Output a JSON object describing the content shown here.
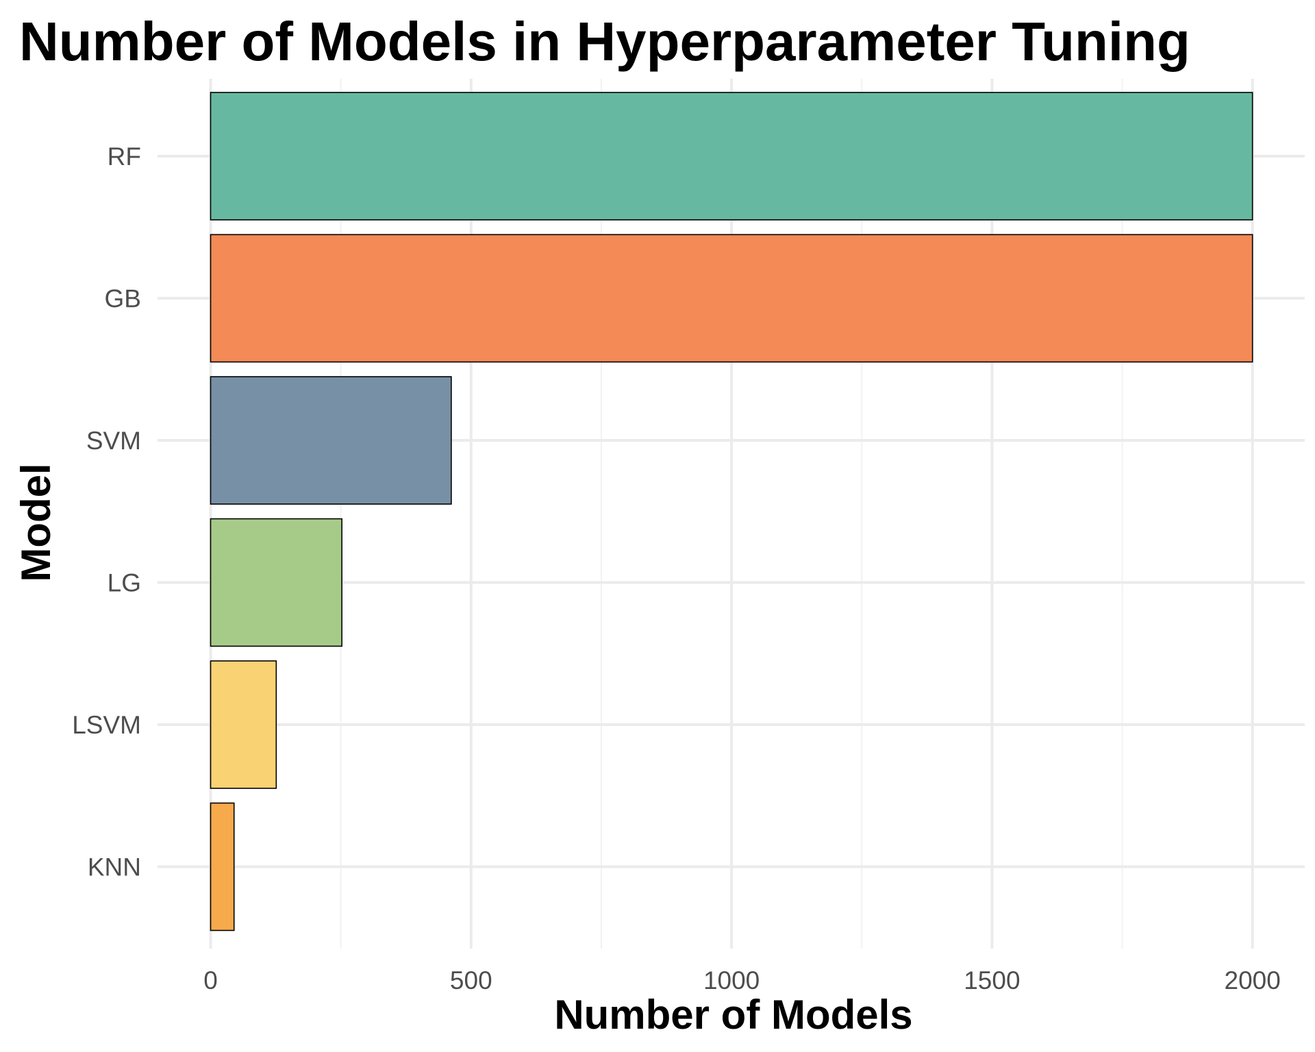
{
  "chart_data": {
    "type": "bar",
    "orientation": "horizontal",
    "title": "Number of Models in Hyperparameter Tuning",
    "xlabel": "Number of Models",
    "ylabel": "Model",
    "categories": [
      "RF",
      "GB",
      "SVM",
      "LG",
      "LSVM",
      "KNN"
    ],
    "values": [
      2000,
      2000,
      462,
      252,
      126,
      45
    ],
    "colors": [
      "#66B9A0",
      "#F48A56",
      "#7790A6",
      "#A6CB88",
      "#F9D274",
      "#F7AA4B"
    ],
    "xlim": [
      0,
      2100
    ],
    "xticks": [
      0,
      500,
      1000,
      1500,
      2000
    ],
    "xtick_labels": [
      "0",
      "500",
      "1000",
      "1500",
      "2000"
    ],
    "grid": true,
    "legend": false
  }
}
